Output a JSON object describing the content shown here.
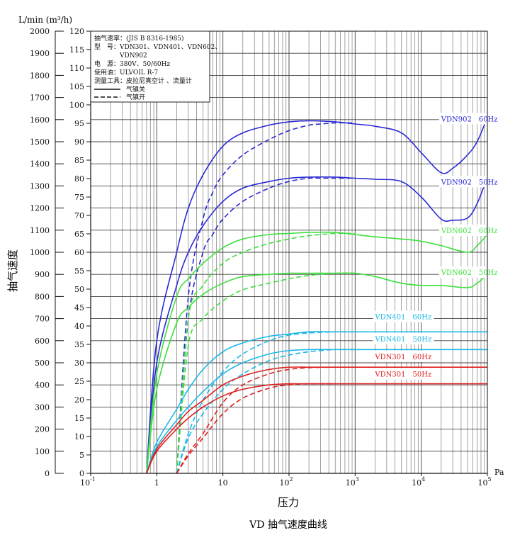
{
  "chart_data": {
    "type": "line",
    "title": "VD 抽气速度曲线",
    "xlabel": "压力",
    "x_unit": "Pa",
    "ylabel": "抽气速度",
    "y_unit_left": "L/min (m³/h)",
    "x_scale": "log",
    "xlim": [
      0.1,
      100000
    ],
    "ylim_left": [
      0,
      2000
    ],
    "ylim_right_m3h": [
      0,
      120
    ],
    "x_ticks": [
      {
        "base": "10",
        "exp": "-1"
      },
      {
        "base": "1",
        "exp": ""
      },
      {
        "base": "10",
        "exp": ""
      },
      {
        "base": "10",
        "exp": "2"
      },
      {
        "base": "10",
        "exp": "3"
      },
      {
        "base": "10",
        "exp": "4"
      },
      {
        "base": "10",
        "exp": "5"
      }
    ],
    "y_left_ticks": [
      "0",
      "100",
      "200",
      "300",
      "400",
      "500",
      "600",
      "700",
      "800",
      "900",
      "1000",
      "1100",
      "1200",
      "1300",
      "1400",
      "1500",
      "1600",
      "1700",
      "1800",
      "1900",
      "2000"
    ],
    "y_right_ticks": [
      "0",
      "5",
      "10",
      "15",
      "20",
      "25",
      "30",
      "35",
      "40",
      "45",
      "50",
      "55",
      "60",
      "65",
      "70",
      "75",
      "80",
      "85",
      "90",
      "95",
      "100",
      "105",
      "110",
      "115",
      "120"
    ],
    "grid": true,
    "legend": {
      "position": "top-left",
      "lines": [
        "抽气速率：(JIS B 8316-1985)",
        "型　号：VDN301、VDN401、VDN602、",
        "　　　　VDN902",
        "电　源：380V、50/60Hz",
        "使用油：ULVOIL R-7",
        "测量工具：皮拉尼真空计 、流量计"
      ],
      "solid_label": "气镇关",
      "dashed_label": "气镇开"
    },
    "colors": {
      "VDN902": "#2b2bd6",
      "VDN602": "#3ee03e",
      "VDN401": "#1cb8ea",
      "VDN301": "#e02020"
    },
    "series": [
      {
        "name": "VDN902 60Hz",
        "model": "VDN902",
        "style": "solid",
        "x": [
          0.7,
          1,
          2,
          3,
          5,
          10,
          20,
          50,
          100,
          200,
          500,
          1000,
          2000,
          5000,
          10000,
          20000,
          30000,
          50000,
          70000,
          100000
        ],
        "y": [
          0,
          600,
          1000,
          1200,
          1350,
          1480,
          1540,
          1575,
          1590,
          1595,
          1590,
          1580,
          1570,
          1540,
          1450,
          1360,
          1380,
          1440,
          1500,
          1610
        ]
      },
      {
        "name": "VDN902 60Hz",
        "model": "VDN902",
        "style": "dashed",
        "x": [
          2,
          3,
          5,
          7,
          10,
          20,
          50,
          100,
          200,
          300,
          500,
          1000
        ],
        "y": [
          0,
          800,
          1150,
          1270,
          1350,
          1440,
          1510,
          1550,
          1575,
          1580,
          1585,
          1585
        ]
      },
      {
        "name": "VDN902 50Hz",
        "model": "VDN902",
        "style": "solid",
        "x": [
          0.7,
          1,
          2,
          3,
          5,
          10,
          20,
          50,
          100,
          200,
          500,
          1000,
          2000,
          5000,
          10000,
          20000,
          30000,
          50000,
          70000,
          100000
        ],
        "y": [
          0,
          500,
          850,
          1000,
          1120,
          1230,
          1290,
          1320,
          1335,
          1340,
          1340,
          1335,
          1330,
          1320,
          1250,
          1150,
          1145,
          1155,
          1220,
          1340
        ]
      },
      {
        "name": "VDN902 50Hz",
        "model": "VDN902",
        "style": "dashed",
        "x": [
          2,
          3,
          5,
          7,
          10,
          20,
          50,
          100,
          200,
          300,
          500,
          1000
        ],
        "y": [
          0,
          700,
          1000,
          1080,
          1150,
          1230,
          1290,
          1320,
          1335,
          1335,
          1335,
          1335
        ]
      },
      {
        "name": "VDN602 60Hz",
        "model": "VDN602",
        "style": "solid",
        "x": [
          0.7,
          1,
          2,
          3,
          5,
          10,
          20,
          50,
          100,
          200,
          500,
          1000,
          2000,
          5000,
          10000,
          20000,
          50000,
          70000,
          100000
        ],
        "y": [
          0,
          450,
          800,
          880,
          950,
          1020,
          1060,
          1080,
          1085,
          1090,
          1090,
          1080,
          1070,
          1060,
          1050,
          1030,
          1000,
          1030,
          1080
        ]
      },
      {
        "name": "VDN602 60Hz",
        "model": "VDN602",
        "style": "dashed",
        "x": [
          2,
          3,
          5,
          10,
          20,
          50,
          100,
          200,
          500,
          1000
        ],
        "y": [
          0,
          700,
          850,
          950,
          1000,
          1040,
          1060,
          1075,
          1085,
          1085
        ]
      },
      {
        "name": "VDN602 50Hz",
        "model": "VDN602",
        "style": "solid",
        "x": [
          0.7,
          1,
          2,
          3,
          5,
          10,
          20,
          50,
          100,
          200,
          500,
          1000,
          2000,
          5000,
          10000,
          20000,
          50000,
          70000,
          100000
        ],
        "y": [
          0,
          380,
          680,
          750,
          810,
          860,
          890,
          900,
          905,
          905,
          905,
          905,
          890,
          860,
          850,
          850,
          840,
          860,
          900
        ]
      },
      {
        "name": "VDN602 50Hz",
        "model": "VDN602",
        "style": "dashed",
        "x": [
          2,
          3,
          5,
          10,
          20,
          50,
          100,
          200,
          500,
          1000
        ],
        "y": [
          0,
          580,
          700,
          780,
          830,
          860,
          880,
          895,
          905,
          905
        ]
      },
      {
        "name": "VDN401 60Hz",
        "model": "VDN401",
        "style": "solid",
        "x": [
          0.7,
          1,
          2,
          3,
          5,
          10,
          20,
          50,
          100,
          200,
          500,
          1000,
          10000,
          100000
        ],
        "y": [
          0,
          140,
          290,
          380,
          470,
          550,
          590,
          620,
          630,
          640,
          640,
          640,
          640,
          640
        ]
      },
      {
        "name": "VDN401 60Hz",
        "model": "VDN401",
        "style": "dashed",
        "x": [
          2,
          3,
          5,
          10,
          20,
          50,
          100,
          200,
          500,
          1000
        ],
        "y": [
          0,
          180,
          330,
          460,
          540,
          600,
          625,
          635,
          640,
          640
        ]
      },
      {
        "name": "VDN401 50Hz",
        "model": "VDN401",
        "style": "solid",
        "x": [
          0.7,
          1,
          2,
          3,
          5,
          10,
          20,
          50,
          100,
          200,
          500,
          1000,
          10000,
          100000
        ],
        "y": [
          0,
          120,
          240,
          300,
          370,
          450,
          500,
          540,
          555,
          560,
          560,
          560,
          560,
          560
        ]
      },
      {
        "name": "VDN401 50Hz",
        "model": "VDN401",
        "style": "dashed",
        "x": [
          2,
          3,
          5,
          10,
          20,
          50,
          100,
          200,
          500,
          1000
        ],
        "y": [
          0,
          160,
          270,
          380,
          450,
          510,
          535,
          550,
          560,
          560
        ]
      },
      {
        "name": "VDN301 60Hz",
        "model": "VDN301",
        "style": "solid",
        "x": [
          0.7,
          1,
          2,
          3,
          5,
          10,
          20,
          50,
          100,
          200,
          500,
          1000,
          10000,
          100000
        ],
        "y": [
          0,
          110,
          220,
          280,
          330,
          400,
          440,
          470,
          480,
          480,
          480,
          480,
          480,
          480
        ]
      },
      {
        "name": "VDN301 60Hz",
        "model": "VDN301",
        "style": "dashed",
        "x": [
          2,
          3,
          5,
          10,
          20,
          50,
          100,
          200,
          500
        ],
        "y": [
          0,
          90,
          180,
          320,
          400,
          450,
          470,
          478,
          480
        ]
      },
      {
        "name": "VDN301 50Hz",
        "model": "VDN301",
        "style": "solid",
        "x": [
          0.7,
          1,
          2,
          3,
          5,
          10,
          20,
          50,
          100,
          200,
          500,
          1000,
          10000,
          100000
        ],
        "y": [
          0,
          100,
          200,
          250,
          300,
          350,
          380,
          400,
          405,
          405,
          405,
          405,
          405,
          405
        ]
      },
      {
        "name": "VDN301 50Hz",
        "model": "VDN301",
        "style": "dashed",
        "x": [
          2,
          3,
          5,
          10,
          20,
          50,
          100,
          200,
          500
        ],
        "y": [
          0,
          80,
          160,
          270,
          340,
          385,
          400,
          405,
          405
        ]
      }
    ],
    "series_labels": [
      {
        "model": "VDN902",
        "text": "VDN902　60Hz",
        "x": 20000,
        "y": 1595
      },
      {
        "model": "VDN902",
        "text": "VDN902　50Hz",
        "x": 20000,
        "y": 1310
      },
      {
        "model": "VDN602",
        "text": "VDN602　60Hz",
        "x": 20000,
        "y": 1090
      },
      {
        "model": "VDN602",
        "text": "VDN602　50Hz",
        "x": 20000,
        "y": 900
      },
      {
        "model": "VDN401",
        "text": "VDN401　60Hz",
        "x": 2000,
        "y": 700
      },
      {
        "model": "VDN401",
        "text": "VDN401　50Hz",
        "x": 2000,
        "y": 600
      },
      {
        "model": "VDN301",
        "text": "VDN301　60Hz",
        "x": 2000,
        "y": 520
      },
      {
        "model": "VDN301",
        "text": "VDN301　50Hz",
        "x": 2000,
        "y": 440
      }
    ]
  }
}
